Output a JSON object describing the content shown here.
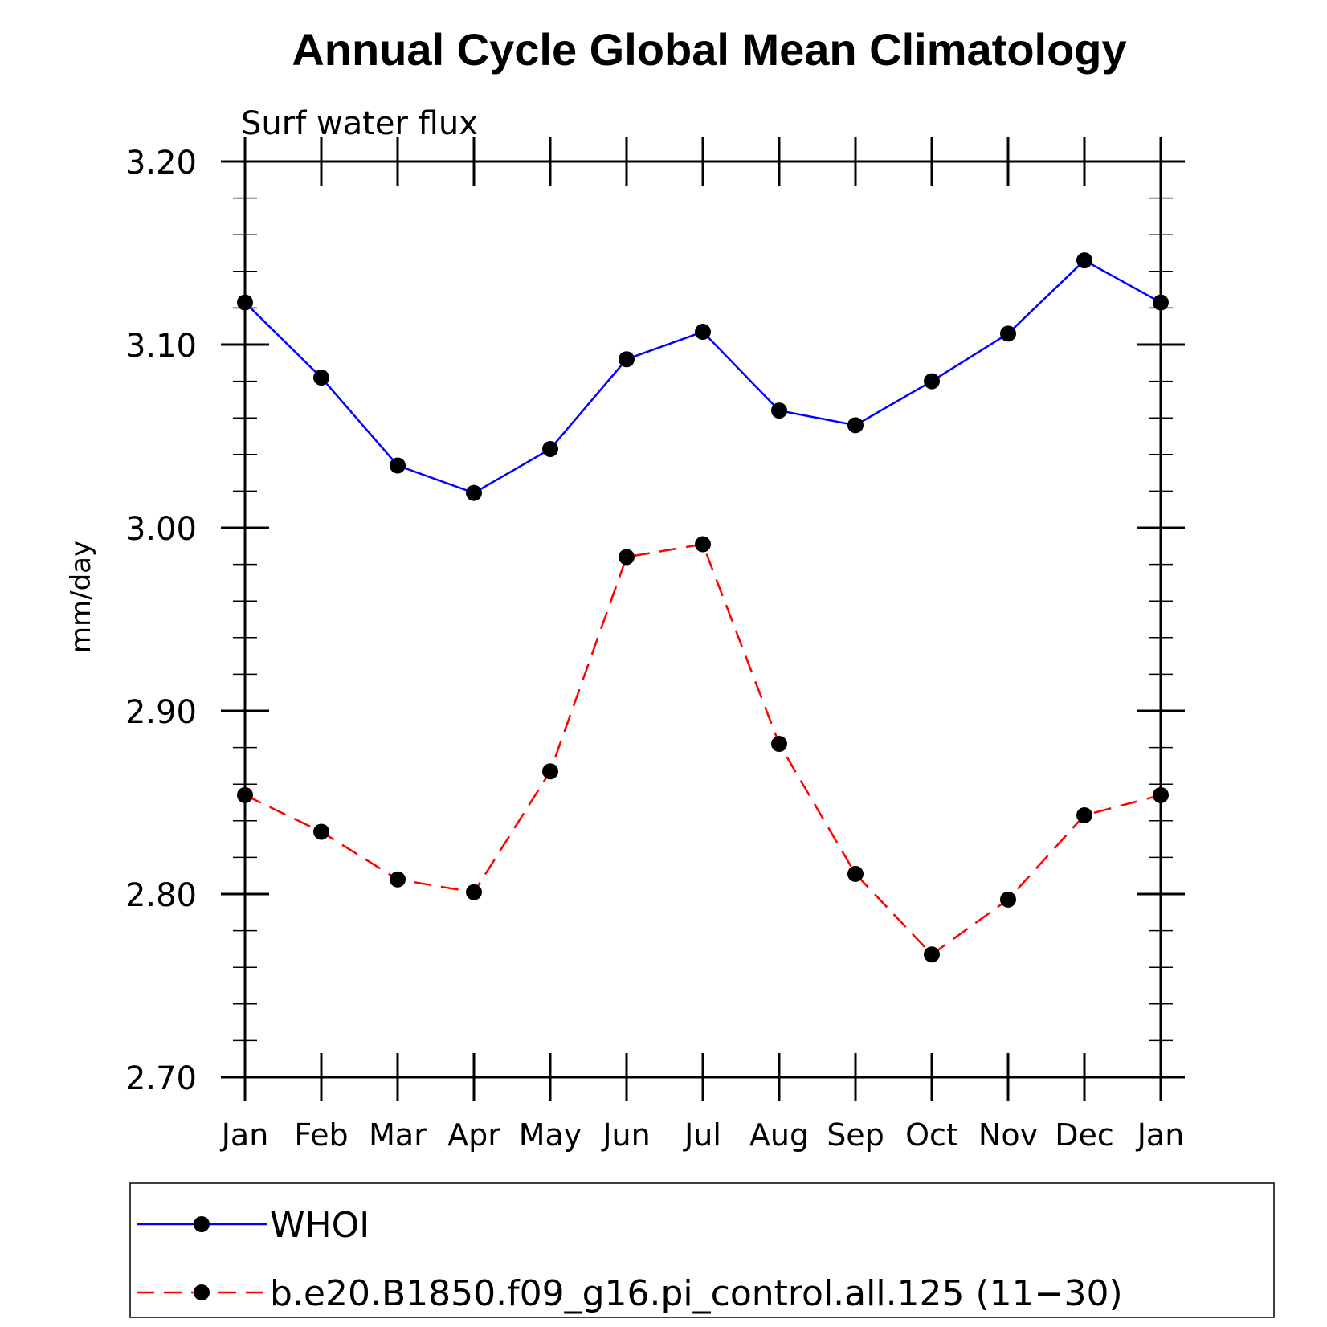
{
  "chart_data": {
    "type": "line",
    "title": "Annual Cycle Global Mean Climatology",
    "subtitle": "Surf water flux",
    "ylabel": "mm/day",
    "xlabel": "",
    "ylim": [
      2.7,
      3.2
    ],
    "y_ticks": [
      "2.70",
      "2.80",
      "2.90",
      "3.00",
      "3.10",
      "3.20"
    ],
    "y_minor_step": 0.02,
    "categories": [
      "Jan",
      "Feb",
      "Mar",
      "Apr",
      "May",
      "Jun",
      "Jul",
      "Aug",
      "Sep",
      "Oct",
      "Nov",
      "Dec",
      "Jan"
    ],
    "legend_position": "bottom",
    "series": [
      {
        "name": "WHOI",
        "color": "#0000ff",
        "dash": "solid",
        "marker": "filled-circle",
        "values": [
          3.123,
          3.082,
          3.034,
          3.019,
          3.043,
          3.092,
          3.107,
          3.064,
          3.056,
          3.08,
          3.106,
          3.146,
          3.123
        ]
      },
      {
        "name": "b.e20.B1850.f09_g16.pi_control.all.125 (11−30)",
        "color": "#ff0000",
        "dash": "dashed",
        "marker": "filled-circle",
        "values": [
          2.854,
          2.834,
          2.808,
          2.801,
          2.867,
          2.984,
          2.991,
          2.882,
          2.811,
          2.767,
          2.797,
          2.843,
          2.854
        ]
      }
    ]
  }
}
